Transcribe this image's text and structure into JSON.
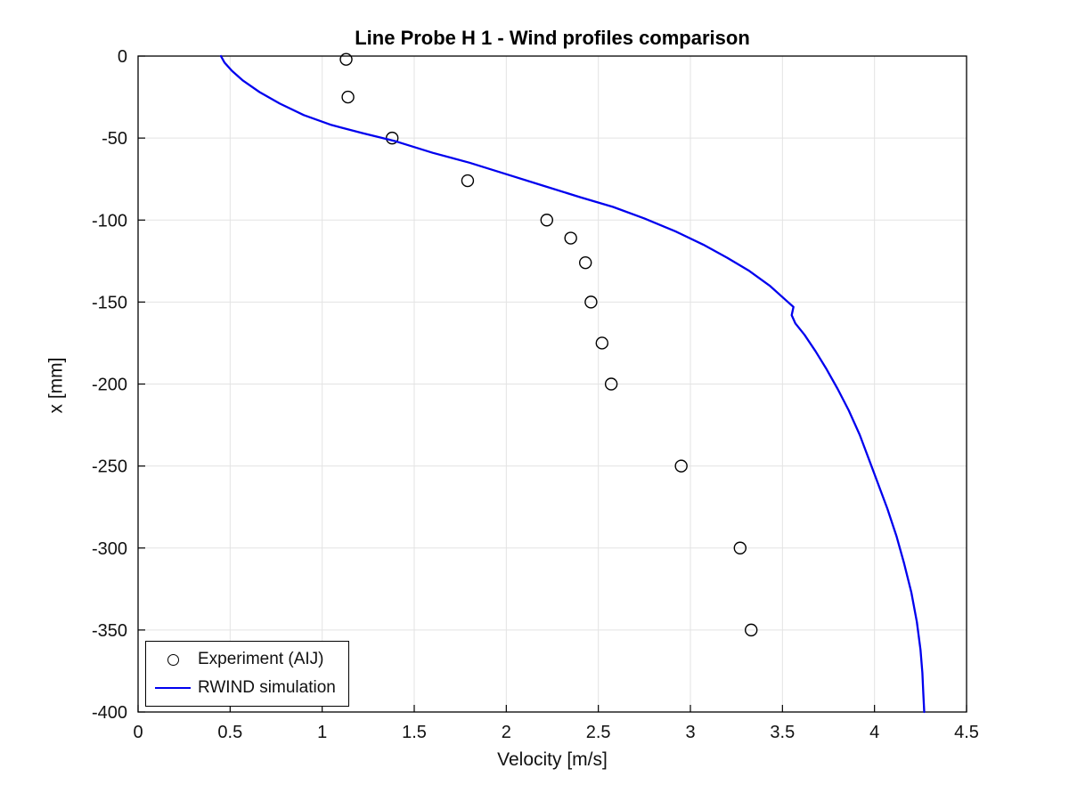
{
  "chart_data": {
    "type": "line",
    "title": "Line Probe H 1 - Wind profiles comparison",
    "xlabel": "Velocity [m/s]",
    "ylabel": "x [mm]",
    "xlim": [
      0,
      4.5
    ],
    "ylim": [
      -400,
      0
    ],
    "xticks": [
      0,
      0.5,
      1,
      1.5,
      2,
      2.5,
      3,
      3.5,
      4,
      4.5
    ],
    "yticks": [
      0,
      -50,
      -100,
      -150,
      -200,
      -250,
      -300,
      -350,
      -400
    ],
    "grid": true,
    "legend_position": "bottom-left",
    "colors": {
      "grid": "#e3e3e3",
      "axis": "#000000",
      "experiment": "#000000",
      "simulation": "#0000EE"
    },
    "series": [
      {
        "name": "Experiment (AIJ)",
        "type": "scatter",
        "marker": "open-circle",
        "color": "#000000",
        "points": [
          [
            1.13,
            -2
          ],
          [
            1.14,
            -25
          ],
          [
            1.38,
            -50
          ],
          [
            1.79,
            -76
          ],
          [
            2.22,
            -100
          ],
          [
            2.35,
            -111
          ],
          [
            2.43,
            -126
          ],
          [
            2.46,
            -150
          ],
          [
            2.52,
            -175
          ],
          [
            2.57,
            -200
          ],
          [
            2.95,
            -250
          ],
          [
            3.27,
            -300
          ],
          [
            3.33,
            -350
          ]
        ]
      },
      {
        "name": "RWIND simulation",
        "type": "line",
        "color": "#0000EE",
        "points": [
          [
            0.45,
            0
          ],
          [
            0.47,
            -4
          ],
          [
            0.51,
            -9
          ],
          [
            0.57,
            -15
          ],
          [
            0.66,
            -22
          ],
          [
            0.77,
            -29
          ],
          [
            0.9,
            -36
          ],
          [
            1.05,
            -42
          ],
          [
            1.22,
            -47
          ],
          [
            1.4,
            -52
          ],
          [
            1.6,
            -59
          ],
          [
            1.8,
            -65
          ],
          [
            2.0,
            -72
          ],
          [
            2.2,
            -79
          ],
          [
            2.4,
            -86
          ],
          [
            2.58,
            -92
          ],
          [
            2.75,
            -99
          ],
          [
            2.92,
            -107
          ],
          [
            3.07,
            -115
          ],
          [
            3.2,
            -123
          ],
          [
            3.32,
            -131
          ],
          [
            3.43,
            -140
          ],
          [
            3.51,
            -148
          ],
          [
            3.56,
            -153
          ],
          [
            3.55,
            -158
          ],
          [
            3.57,
            -163
          ],
          [
            3.62,
            -170
          ],
          [
            3.68,
            -180
          ],
          [
            3.74,
            -191
          ],
          [
            3.8,
            -203
          ],
          [
            3.86,
            -216
          ],
          [
            3.92,
            -231
          ],
          [
            3.97,
            -246
          ],
          [
            4.02,
            -261
          ],
          [
            4.07,
            -276
          ],
          [
            4.12,
            -293
          ],
          [
            4.16,
            -309
          ],
          [
            4.2,
            -327
          ],
          [
            4.23,
            -345
          ],
          [
            4.25,
            -362
          ],
          [
            4.26,
            -376
          ],
          [
            4.265,
            -388
          ],
          [
            4.27,
            -400
          ]
        ]
      }
    ],
    "legend": [
      {
        "label": "Experiment (AIJ)"
      },
      {
        "label": "RWIND simulation"
      }
    ]
  }
}
